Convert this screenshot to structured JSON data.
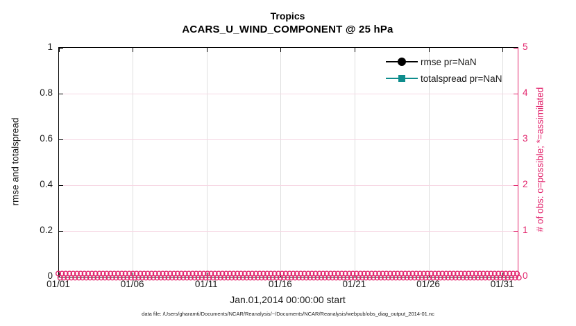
{
  "figure": {
    "footnote": "data file: /Users/gharamti/Documents/NCAR/Reanalysis/~/Documents/NCAR/Reanalysis/webpub/obs_diag_output_2014-01.nc",
    "colors": {
      "obs_accent": "#e2246c",
      "totalspread_accent": "#0e8d8d",
      "rmse_accent": "#000000",
      "grid_vertical": "#dedede",
      "grid_horizontal": "#f6d7e3"
    }
  },
  "chart_data": {
    "type": "line",
    "title": "Tropics",
    "subtitle": "ACARS_U_WIND_COMPONENT @ 25 hPa",
    "xlabel": "Jan.01,2014 00:00:00 start",
    "ylabel_left": "rmse and totalspread",
    "ylabel_right": "# of obs: o=possible; *=assimilated",
    "x_ticks": [
      "01/01",
      "01/06",
      "01/11",
      "01/16",
      "01/21",
      "01/26",
      "01/31"
    ],
    "x_tick_days": [
      0,
      5,
      10,
      15,
      20,
      25,
      30
    ],
    "x_range_days": 31,
    "y_left_ticks": [
      "0",
      "0.2",
      "0.4",
      "0.6",
      "0.8",
      "1"
    ],
    "y_left_tick_values": [
      0,
      0.2,
      0.4,
      0.6,
      0.8,
      1
    ],
    "ylim_left": [
      0,
      1
    ],
    "y_right_ticks": [
      "0",
      "1",
      "2",
      "3",
      "4",
      "5"
    ],
    "y_right_tick_values": [
      0,
      1,
      2,
      3,
      4,
      5
    ],
    "ylim_right": [
      0,
      5
    ],
    "grid": true,
    "legend": {
      "position": "top-right-inside",
      "frame": false,
      "items": [
        {
          "label": "rmse pr=NaN",
          "color": "#000000",
          "marker": "filled-circle"
        },
        {
          "label": "totalspread pr=NaN",
          "color": "#0e8d8d",
          "marker": "filled-square"
        }
      ]
    },
    "series": [
      {
        "name": "rmse",
        "axis": "left",
        "value": null,
        "note": "pr=NaN, no curve drawn"
      },
      {
        "name": "totalspread",
        "axis": "left",
        "value": null,
        "note": "pr=NaN, no curve drawn"
      },
      {
        "name": "obs possible (o)",
        "axis": "right",
        "constant_value": 0,
        "n_points": 124,
        "marker": "open-circle"
      },
      {
        "name": "obs assimilated (*)",
        "axis": "right",
        "constant_value": 0,
        "n_points": 124,
        "marker": "open-circle"
      }
    ]
  }
}
